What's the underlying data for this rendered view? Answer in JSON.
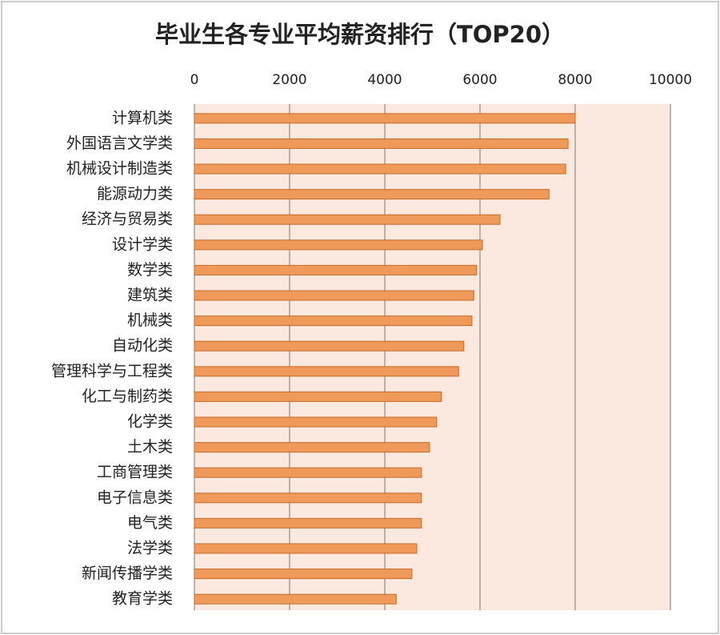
{
  "chart_data": {
    "type": "bar",
    "orientation": "horizontal",
    "title": "毕业生各专业平均薪资排行（TOP20）",
    "categories": [
      "计算机类",
      "外国语言文学类",
      "机械设计制造类",
      "能源动力类",
      "经济与贸易类",
      "设计学类",
      "数学类",
      "建筑类",
      "机械类",
      "自动化类",
      "管理科学与工程类",
      "化工与制药类",
      "化学类",
      "土木类",
      "工商管理类",
      "电子信息类",
      "电气类",
      "法学类",
      "新闻传播学类",
      "教育学类"
    ],
    "values": [
      8000,
      7850,
      7800,
      7450,
      6420,
      6050,
      5930,
      5870,
      5830,
      5660,
      5550,
      5190,
      5090,
      4940,
      4770,
      4770,
      4770,
      4670,
      4570,
      4240
    ],
    "color": "#ef9a5a",
    "xlim": [
      0,
      10000
    ],
    "xticks": [
      0,
      2000,
      4000,
      6000,
      8000,
      10000
    ],
    "grid": true
  }
}
